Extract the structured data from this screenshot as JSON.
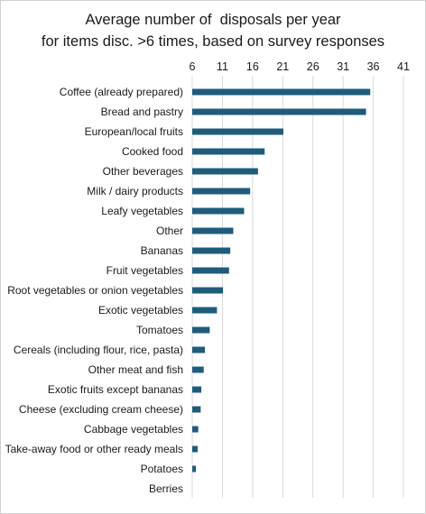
{
  "chart_data": {
    "type": "bar",
    "orientation": "horizontal",
    "title": [
      "Average number of  disposals per year",
      "for items disc. >6 times, based on survey responses"
    ],
    "xlim": [
      6,
      41
    ],
    "xticks": [
      6,
      11,
      16,
      21,
      26,
      31,
      36,
      41
    ],
    "x_axis_position": "top",
    "grid": "vertical",
    "bar_color": "#1f5c7c",
    "categories": [
      "Coffee (already prepared)",
      "Bread and pastry",
      "European/local fruits",
      "Cooked food",
      "Other beverages",
      "Milk / dairy products",
      "Leafy vegetables",
      "Other",
      "Bananas",
      "Fruit vegetables",
      "Root vegetables or onion vegetables",
      "Exotic vegetables",
      "Tomatoes",
      "Cereals (including flour, rice, pasta)",
      "Other meat and fish",
      "Exotic fruits except bananas",
      "Cheese (excluding cream cheese)",
      "Cabbage vegetables",
      "Take-away food or other ready meals",
      "Potatoes",
      "Berries"
    ],
    "values": [
      35.5,
      34.8,
      21.1,
      18.0,
      16.9,
      15.6,
      14.6,
      12.8,
      12.3,
      12.1,
      11.1,
      10.1,
      8.9,
      8.1,
      7.9,
      7.5,
      7.4,
      7.0,
      6.9,
      6.6,
      6.0
    ]
  }
}
